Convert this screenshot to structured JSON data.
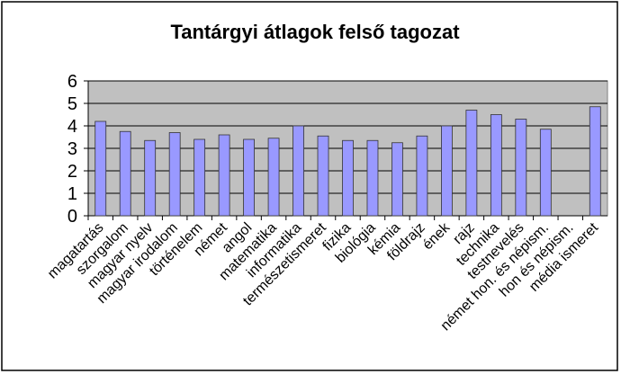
{
  "chart_data": {
    "type": "bar",
    "title": "Tantárgyi átlagok felső tagozat",
    "categories": [
      "magatartás",
      "szorgalom",
      "magyar nyelv",
      "magyar irodalom",
      "történelem",
      "német",
      "angol",
      "matematika",
      "informatika",
      "természetismeret",
      "fizika",
      "biológia",
      "kémia",
      "földrajz",
      "ének",
      "rajz",
      "technika",
      "testnevelés",
      "német hon. és népism.",
      "hon és népism.",
      "média ismeret"
    ],
    "values": [
      4.2,
      3.75,
      3.35,
      3.7,
      3.4,
      3.6,
      3.4,
      3.45,
      4.0,
      3.55,
      3.35,
      3.35,
      3.25,
      3.55,
      4.0,
      4.7,
      4.5,
      4.3,
      3.85,
      null,
      4.85
    ],
    "color": "#9999ff",
    "ylim": [
      0,
      6
    ],
    "yticks": [
      0,
      1,
      2,
      3,
      4,
      5,
      6
    ],
    "grid": true
  }
}
